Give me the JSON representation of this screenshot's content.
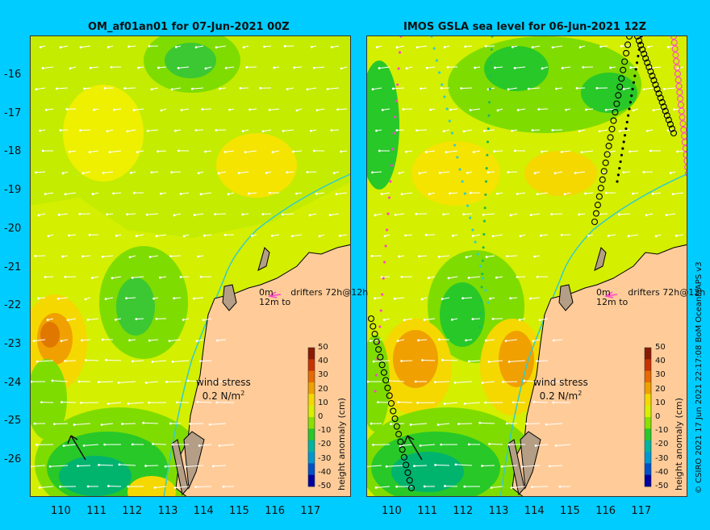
{
  "panels": [
    {
      "title": "OM_af01an01 for 07-Jun-2021 00Z",
      "drifters_line1": "0m",
      "drifters_line2": "drifters 72h@12h",
      "drifters_line3": "12m to",
      "wind_line1": "wind stress",
      "wind_line2": "0.2 N/m",
      "wind_sup": "2"
    },
    {
      "title": "IMOS GSLA sea level  for 06-Jun-2021 12Z",
      "drifters_line1": "0m",
      "drifters_line2": "drifters 72h@12h",
      "drifters_line3": "12m to",
      "wind_line1": "wind stress",
      "wind_line2": "0.2 N/m",
      "wind_sup": "2"
    }
  ],
  "axes": {
    "y_ticks": [
      "-16",
      "-17",
      "-18",
      "-19",
      "-20",
      "-21",
      "-22",
      "-23",
      "-24",
      "-25",
      "-26"
    ],
    "x_ticks": [
      "110",
      "111",
      "112",
      "113",
      "114",
      "115",
      "116",
      "117"
    ]
  },
  "colorbar": {
    "title": "height anomaly (cm)",
    "labels": [
      "50",
      "40",
      "30",
      "20",
      "10",
      "0",
      "-10",
      "-20",
      "-30",
      "-40",
      "-50"
    ],
    "colors": [
      "#8b1a00",
      "#c83200",
      "#e86a00",
      "#f0a000",
      "#f5d800",
      "#d8f000",
      "#8ae000",
      "#28c828",
      "#00b4a0",
      "#0096d2",
      "#0050c8",
      "#0000a0"
    ]
  },
  "colors": {
    "background": "#00ccff",
    "land": "#ffcc99",
    "coast_shade": "#b49e86",
    "isobath": "#33cccc",
    "arrows": "#ffffff",
    "drifter_marker": "#ff44cc"
  },
  "credit": "© CSIRO 2021   17 Jun 2021 22:17:08 BoM OceanMAPS v3"
}
